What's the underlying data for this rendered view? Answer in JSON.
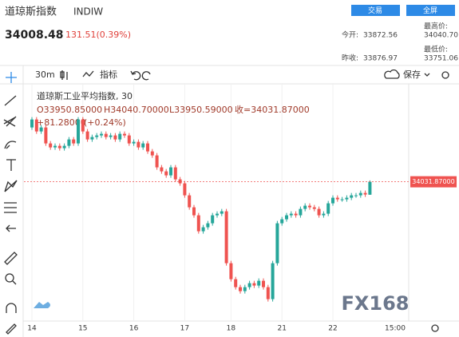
{
  "header": {
    "title": "道琼斯指数",
    "symbol": "INDIW",
    "trade_button": "交易",
    "fullscreen_button": "全屏",
    "price": "34008.48",
    "change": "131.51(0.39%)",
    "stats": [
      {
        "label": "今开:",
        "value": "33872.56"
      },
      {
        "label": "最高价:",
        "value": "34040.70"
      },
      {
        "label": "昨收:",
        "value": "33876.97"
      },
      {
        "label": "最低价:",
        "value": "33751.06"
      }
    ]
  },
  "toolbar": {
    "interval": "30m",
    "indicators": "指标",
    "save": "保存"
  },
  "legend": {
    "name": "道琼斯工业平均指数, 30",
    "ohlc": [
      "O33950.85000",
      "H34040.70000",
      "L33950.59000",
      "收=34031.87000"
    ],
    "change": "+81.28000",
    "change_pct": "(+0.24%)"
  },
  "watermark": "FX168",
  "chart_data": {
    "type": "candlestick",
    "categories": [
      "14",
      null,
      null,
      null,
      null,
      null,
      null,
      null,
      null,
      null,
      null,
      "15",
      null,
      null,
      null,
      null,
      null,
      null,
      null,
      null,
      null,
      null,
      "16",
      null,
      null,
      null,
      null,
      null,
      null,
      null,
      null,
      null,
      null,
      "17",
      null,
      null,
      null,
      null,
      null,
      null,
      null,
      null,
      null,
      "18",
      null,
      null,
      null,
      null,
      null,
      null,
      null,
      null,
      null,
      null,
      "21",
      null,
      null,
      null,
      null,
      null,
      null,
      null,
      null,
      null,
      null,
      "22",
      null,
      null,
      null,
      null,
      null,
      null,
      null,
      null
    ],
    "x_axis_end_label": "15:00",
    "open": [
      34372,
      34422,
      34347,
      34372,
      34272,
      34247,
      34257,
      34242,
      34257,
      34297,
      34272,
      34422,
      34347,
      34297,
      34312,
      34322,
      34332,
      34312,
      34322,
      34297,
      34332,
      34322,
      34272,
      34282,
      34247,
      34272,
      34222,
      34197,
      34122,
      34097,
      34072,
      34122,
      34047,
      34022,
      33947,
      33872,
      33822,
      33722,
      33747,
      33772,
      33822,
      33832,
      33847,
      33522,
      33422,
      33372,
      33347,
      33372,
      33397,
      33382,
      33412,
      33372,
      33297,
      33522,
      33772,
      33797,
      33822,
      33832,
      33822,
      33862,
      33882,
      33872,
      33862,
      33822,
      33832,
      33897,
      33932,
      33922,
      33922,
      33932,
      33947,
      33947,
      33962,
      33950.85
    ],
    "high": [
      34437,
      34437,
      34387,
      34387,
      34287,
      34272,
      34272,
      34272,
      34312,
      34312,
      34437,
      34437,
      34362,
      34327,
      34337,
      34347,
      34347,
      34337,
      34337,
      34347,
      34347,
      34337,
      34297,
      34297,
      34287,
      34287,
      34237,
      34212,
      34137,
      34112,
      34137,
      34137,
      34062,
      34037,
      33962,
      33887,
      33837,
      33762,
      33787,
      33837,
      33847,
      33862,
      33862,
      33537,
      33437,
      33387,
      33387,
      33412,
      33412,
      33427,
      33427,
      33387,
      33537,
      33787,
      33812,
      33837,
      33847,
      33847,
      33877,
      33897,
      33897,
      33887,
      33877,
      33847,
      33912,
      33947,
      33947,
      33937,
      33947,
      33962,
      33962,
      33977,
      33977,
      34040.7
    ],
    "low": [
      34357,
      34332,
      34332,
      34257,
      34232,
      34232,
      34227,
      34227,
      34242,
      34257,
      34257,
      34332,
      34282,
      34282,
      34297,
      34307,
      34297,
      34297,
      34282,
      34282,
      34307,
      34257,
      34257,
      34232,
      34232,
      34207,
      34182,
      34107,
      34082,
      34057,
      34057,
      34032,
      34007,
      33932,
      33857,
      33807,
      33707,
      33707,
      33732,
      33757,
      33807,
      33817,
      33507,
      33407,
      33357,
      33332,
      33332,
      33357,
      33367,
      33367,
      33357,
      33282,
      33282,
      33507,
      33757,
      33782,
      33807,
      33807,
      33807,
      33847,
      33857,
      33847,
      33807,
      33807,
      33817,
      33882,
      33907,
      33907,
      33907,
      33917,
      33932,
      33932,
      33937,
      33950.59
    ],
    "close": [
      34422,
      34347,
      34372,
      34272,
      34247,
      34257,
      34242,
      34257,
      34297,
      34272,
      34422,
      34347,
      34297,
      34312,
      34322,
      34332,
      34312,
      34322,
      34297,
      34332,
      34322,
      34272,
      34282,
      34247,
      34272,
      34222,
      34197,
      34122,
      34097,
      34072,
      34122,
      34047,
      34022,
      33947,
      33872,
      33822,
      33722,
      33747,
      33772,
      33822,
      33832,
      33847,
      33522,
      33422,
      33372,
      33347,
      33372,
      33397,
      33382,
      33412,
      33372,
      33297,
      33522,
      33772,
      33797,
      33822,
      33832,
      33822,
      33862,
      33882,
      33872,
      33862,
      33822,
      33832,
      33897,
      33932,
      33922,
      33922,
      33932,
      33947,
      33947,
      33962,
      33952,
      34031.87
    ],
    "up_color": "#26a69a",
    "down_color": "#ef5350",
    "ylim": [
      33170,
      34645
    ],
    "last_price": {
      "value": 34031.87,
      "label": "34031.87000"
    }
  }
}
